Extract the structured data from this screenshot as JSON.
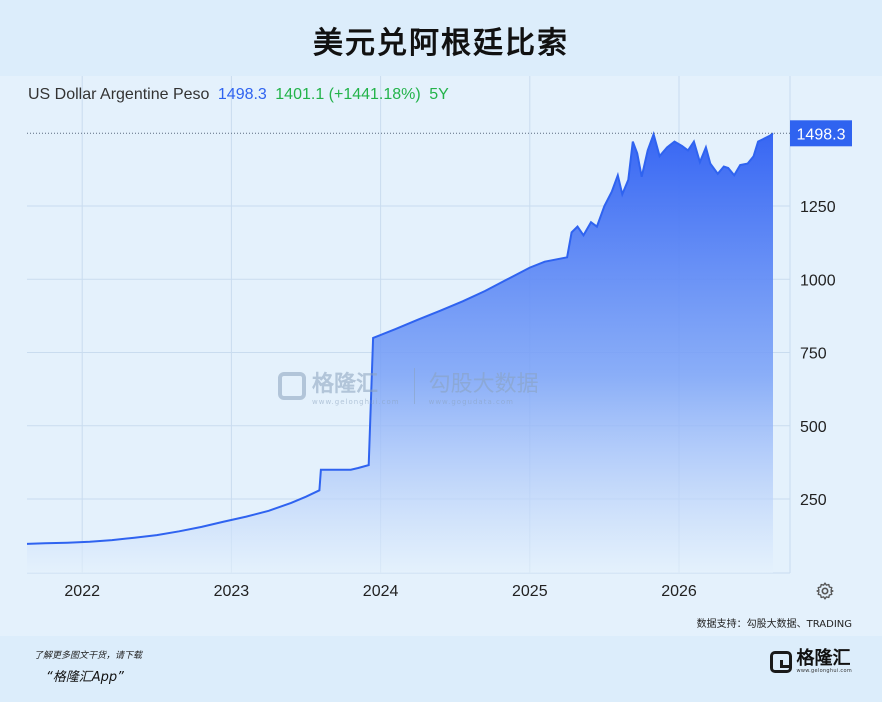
{
  "title": "美元兑阿根廷比索",
  "legend": {
    "name": "US Dollar Argentine Peso",
    "last": "1498.3",
    "change": "1401.1 (+1441.18%)",
    "period": "5Y"
  },
  "last_badge": "1498.3",
  "source": "数据支持：勾股大数据、TRADING",
  "footer": {
    "line1": "了解更多图文干货，请下载",
    "line2": "“格隆汇App”"
  },
  "brand": {
    "name": "格隆汇",
    "sub": "www.gelonghui.com"
  },
  "watermark": {
    "left": "格隆汇",
    "left_sub": "www.gelonghui.com",
    "right": "勾股大数据",
    "right_sub": "www.gogudata.com"
  },
  "colors": {
    "line": "#2f63f0",
    "area_top": "#3a6df5",
    "area_bottom": "#e4f1fc",
    "badge": "#2f63f0"
  },
  "chart_data": {
    "type": "area",
    "title": "美元兑阿根廷比索",
    "xlabel": "",
    "ylabel": "",
    "x_ticks": [
      "2022",
      "2023",
      "2024",
      "2025",
      "2026"
    ],
    "y_ticks": [
      250,
      500,
      750,
      1000,
      1250
    ],
    "xlim": [
      2021.63,
      2026.63
    ],
    "ylim": [
      0,
      1520
    ],
    "grid": true,
    "series": [
      {
        "name": "US Dollar Argentine Peso",
        "points": [
          [
            2021.63,
            97
          ],
          [
            2021.75,
            99
          ],
          [
            2021.9,
            101
          ],
          [
            2022.05,
            104
          ],
          [
            2022.2,
            110
          ],
          [
            2022.35,
            118
          ],
          [
            2022.5,
            127
          ],
          [
            2022.65,
            140
          ],
          [
            2022.8,
            155
          ],
          [
            2022.95,
            173
          ],
          [
            2023.1,
            190
          ],
          [
            2023.25,
            210
          ],
          [
            2023.4,
            237
          ],
          [
            2023.5,
            258
          ],
          [
            2023.59,
            280
          ],
          [
            2023.6,
            350
          ],
          [
            2023.7,
            350
          ],
          [
            2023.8,
            350
          ],
          [
            2023.85,
            356
          ],
          [
            2023.92,
            366
          ],
          [
            2023.95,
            800
          ],
          [
            2024.1,
            830
          ],
          [
            2024.25,
            862
          ],
          [
            2024.4,
            893
          ],
          [
            2024.55,
            925
          ],
          [
            2024.7,
            960
          ],
          [
            2024.85,
            1000
          ],
          [
            2025.0,
            1040
          ],
          [
            2025.1,
            1060
          ],
          [
            2025.25,
            1075
          ],
          [
            2025.28,
            1160
          ],
          [
            2025.32,
            1180
          ],
          [
            2025.36,
            1150
          ],
          [
            2025.41,
            1195
          ],
          [
            2025.45,
            1180
          ],
          [
            2025.5,
            1250
          ],
          [
            2025.55,
            1300
          ],
          [
            2025.59,
            1355
          ],
          [
            2025.62,
            1290
          ],
          [
            2025.66,
            1340
          ],
          [
            2025.69,
            1470
          ],
          [
            2025.72,
            1430
          ],
          [
            2025.75,
            1350
          ],
          [
            2025.79,
            1440
          ],
          [
            2025.83,
            1495
          ],
          [
            2025.87,
            1420
          ],
          [
            2025.92,
            1450
          ],
          [
            2025.97,
            1470
          ],
          [
            2026.02,
            1455
          ],
          [
            2026.06,
            1440
          ],
          [
            2026.1,
            1470
          ],
          [
            2026.14,
            1400
          ],
          [
            2026.18,
            1450
          ],
          [
            2026.21,
            1395
          ],
          [
            2026.26,
            1360
          ],
          [
            2026.3,
            1385
          ],
          [
            2026.33,
            1380
          ],
          [
            2026.37,
            1355
          ],
          [
            2026.41,
            1390
          ],
          [
            2026.46,
            1395
          ],
          [
            2026.5,
            1420
          ],
          [
            2026.53,
            1470
          ],
          [
            2026.57,
            1480
          ],
          [
            2026.61,
            1490
          ],
          [
            2026.63,
            1498.3
          ]
        ]
      }
    ]
  }
}
